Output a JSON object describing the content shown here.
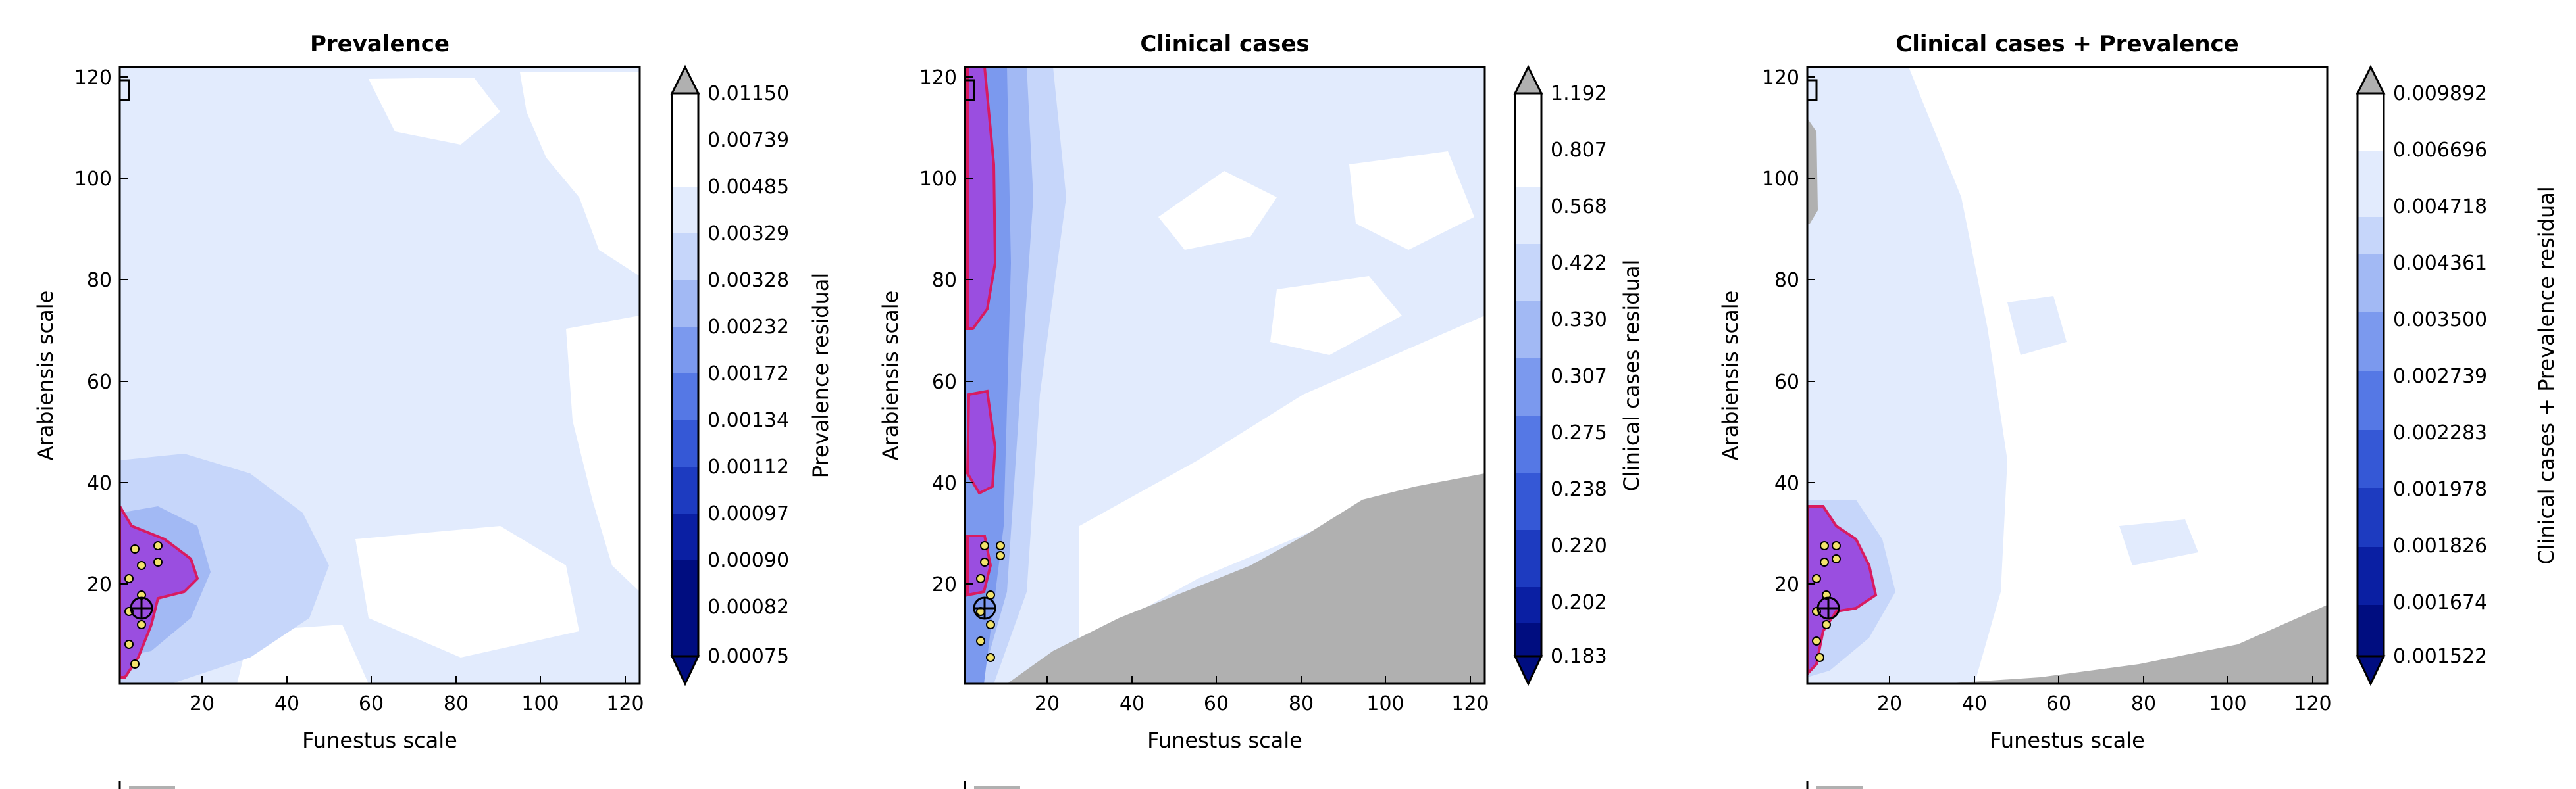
{
  "colors": {
    "background": "#ffffff",
    "gray_region": "#b0b0b0",
    "white": "#ffffff",
    "purple_region": "#9a4ee0",
    "purple_outline": "#d81b60",
    "palette": [
      "#000d80",
      "#0a1fa3",
      "#1d3bc0",
      "#3558d6",
      "#5578e5",
      "#7b99ee",
      "#a2b9f4",
      "#c6d6fa",
      "#e2ebfd",
      "#ffffff"
    ]
  },
  "chart_data": [
    {
      "type": "contour",
      "title": "Prevalence",
      "xlabel": "Funestus scale",
      "ylabel": "Arabiensis scale",
      "xlim": [
        0,
        123
      ],
      "ylim": [
        0,
        122
      ],
      "xticks": [
        "20",
        "40",
        "60",
        "80",
        "100",
        "120"
      ],
      "yticks": [
        "20",
        "40",
        "60",
        "80",
        "100",
        "120"
      ],
      "colorbar": {
        "label": "Prevalence residual",
        "extend": "both",
        "levels": [
          "0.01150",
          "0.00739",
          "0.00485",
          "0.00329",
          "0.00328",
          "0.00232",
          "0.00172",
          "0.00134",
          "0.00112",
          "0.00097",
          "0.00090",
          "0.00082",
          "0.00075"
        ]
      },
      "legend": {
        "visible_text": ""
      }
    },
    {
      "type": "contour",
      "title": "Clinical cases",
      "xlabel": "Funestus scale",
      "ylabel": "Arabiensis scale",
      "xlim": [
        0,
        123
      ],
      "ylim": [
        0,
        122
      ],
      "xticks": [
        "20",
        "40",
        "60",
        "80",
        "100",
        "120"
      ],
      "yticks": [
        "20",
        "40",
        "60",
        "80",
        "100",
        "120"
      ],
      "colorbar": {
        "label": "Clinical cases residual",
        "extend": "both",
        "levels": [
          "1.192",
          "0.807",
          "0.568",
          "0.422",
          "0.330",
          "0.307",
          "0.275",
          "0.238",
          "0.220",
          "0.202",
          "0.183"
        ]
      },
      "legend": {
        "visible_text": ""
      }
    },
    {
      "type": "contour",
      "title": "Clinical cases + Prevalence",
      "xlabel": "Funestus scale",
      "ylabel": "Arabiensis scale",
      "xlim": [
        0,
        123
      ],
      "ylim": [
        0,
        122
      ],
      "xticks": [
        "20",
        "40",
        "60",
        "80",
        "100",
        "120"
      ],
      "yticks": [
        "20",
        "40",
        "60",
        "80",
        "100",
        "120"
      ],
      "colorbar": {
        "label": "Clinical cases + Prevalence residual",
        "extend": "both",
        "levels": [
          "0.009892",
          "0.006696",
          "0.004718",
          "0.004361",
          "0.003500",
          "0.002739",
          "0.002283",
          "0.001978",
          "0.001826",
          "0.001674",
          "0.001522"
        ]
      },
      "legend": {
        "visible_text": ""
      }
    }
  ]
}
